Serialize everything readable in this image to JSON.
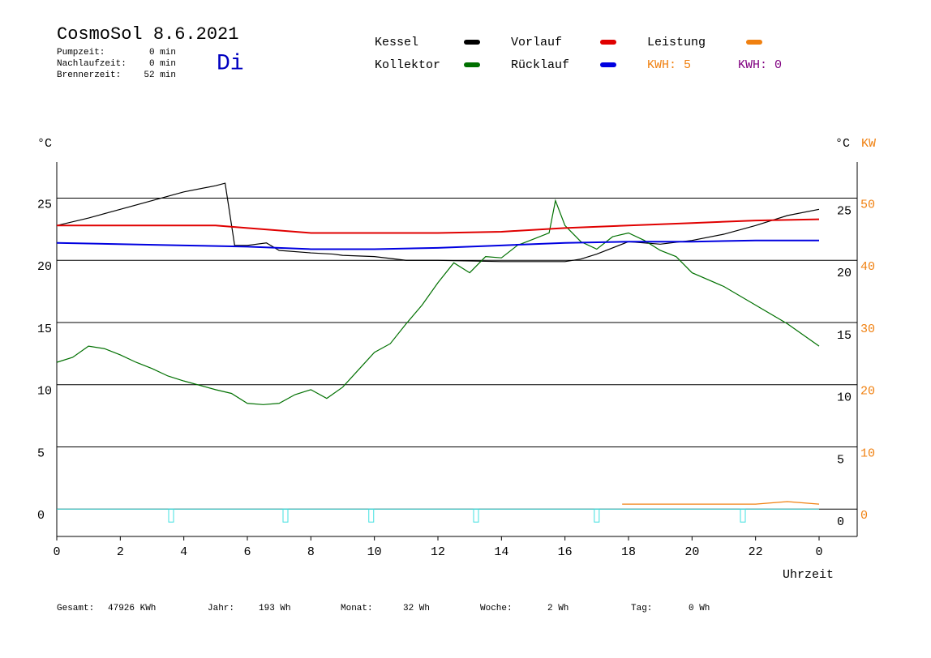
{
  "chart_data": {
    "type": "line",
    "title": "CosmoSol 8.6.2021",
    "weekday": "Di",
    "stats": [
      {
        "label": "Pumpzeit:",
        "value": "0 min"
      },
      {
        "label": "Nachlaufzeit:",
        "value": "0 min"
      },
      {
        "label": "Brennerzeit:",
        "value": "52 min"
      }
    ],
    "energy_labels": [
      {
        "text": "KWH: 5",
        "color": "#f08010"
      },
      {
        "text": "KWH: 0",
        "color": "#800080"
      }
    ],
    "y_label": "°C",
    "y2_labels": [
      "°C",
      "KW"
    ],
    "x_label": "Uhrzeit",
    "xlim": [
      0,
      24
    ],
    "xticks": [
      0,
      2,
      4,
      6,
      8,
      10,
      12,
      14,
      16,
      18,
      20,
      22,
      {
        "value": 24,
        "label": "0"
      }
    ],
    "ylim": [
      -2.2,
      27.9
    ],
    "yticks": [
      0,
      5,
      10,
      15,
      20,
      25
    ],
    "y2lim": [
      -4.4,
      55.8
    ],
    "y2ticks": [
      0,
      10,
      20,
      30,
      40,
      50
    ],
    "grid": true,
    "series": [
      {
        "name": "Kessel",
        "color": "#000000",
        "x": [
          0,
          1,
          2,
          3,
          4,
          5,
          5.3,
          5.6,
          6,
          6.6,
          7,
          8,
          8.7,
          9,
          10,
          11,
          12,
          14,
          16,
          16.5,
          17,
          18,
          19,
          20,
          21,
          22,
          23,
          24
        ],
        "values": [
          22.8,
          23.4,
          24.1,
          24.8,
          25.5,
          26.0,
          26.2,
          21.2,
          21.2,
          21.4,
          20.8,
          20.6,
          20.5,
          20.4,
          20.3,
          20.0,
          20.0,
          19.9,
          19.9,
          20.1,
          20.5,
          21.5,
          21.3,
          21.6,
          22.1,
          22.8,
          23.6,
          24.1
        ]
      },
      {
        "name": "Kollektor",
        "color": "#007000",
        "x": [
          0,
          0.5,
          1,
          1.5,
          2,
          2.5,
          3,
          3.5,
          4,
          5,
          5.5,
          6,
          6.5,
          7,
          7.5,
          8,
          8.5,
          9,
          9.5,
          10,
          10.5,
          11,
          11.5,
          12,
          12.5,
          13,
          13.5,
          14,
          14.5,
          15,
          15.5,
          15.7,
          16,
          16.5,
          17,
          17.5,
          18,
          18.5,
          19,
          19.5,
          20,
          21,
          22,
          23,
          24
        ],
        "values": [
          11.8,
          12.2,
          13.1,
          12.9,
          12.4,
          11.8,
          11.3,
          10.7,
          10.3,
          9.6,
          9.3,
          8.5,
          8.4,
          8.5,
          9.2,
          9.6,
          8.9,
          9.8,
          11.2,
          12.6,
          13.3,
          14.9,
          16.4,
          18.2,
          19.8,
          19.0,
          20.3,
          20.2,
          21.2,
          21.7,
          22.2,
          24.8,
          22.8,
          21.5,
          20.9,
          21.9,
          22.2,
          21.6,
          20.8,
          20.3,
          19.0,
          17.9,
          16.4,
          14.9,
          13.1
        ]
      },
      {
        "name": "Vorlauf",
        "color": "#e00000",
        "x": [
          0,
          5,
          6,
          8,
          10,
          12,
          14,
          16,
          18,
          20,
          22,
          24
        ],
        "values": [
          22.8,
          22.8,
          22.6,
          22.2,
          22.2,
          22.2,
          22.3,
          22.6,
          22.8,
          23.0,
          23.2,
          23.3
        ]
      },
      {
        "name": "Rücklauf",
        "color": "#0000e0",
        "x": [
          0,
          4,
          6,
          8,
          10,
          12,
          14,
          16,
          18,
          20,
          22,
          24
        ],
        "values": [
          21.4,
          21.2,
          21.1,
          20.9,
          20.9,
          21.0,
          21.2,
          21.4,
          21.5,
          21.5,
          21.6,
          21.6
        ]
      },
      {
        "name": "Leistung",
        "color": "#f08010",
        "axis": "y2",
        "x": [
          17.8,
          18,
          20,
          22,
          23,
          24
        ],
        "values": [
          0.8,
          0.8,
          0.8,
          0.8,
          1.2,
          0.8
        ]
      }
    ],
    "pump_color": "#40e0e0",
    "pump_markers": [
      3.6,
      7.2,
      9.9,
      13.2,
      17.0,
      21.6
    ],
    "footer": [
      {
        "label": "Gesamt:",
        "value": "47926 KWh"
      },
      {
        "label": "Jahr:",
        "value": "193 Wh"
      },
      {
        "label": "Monat:",
        "value": "32 Wh"
      },
      {
        "label": "Woche:",
        "value": "2 Wh"
      },
      {
        "label": "Tag:",
        "value": "0 Wh"
      }
    ]
  }
}
